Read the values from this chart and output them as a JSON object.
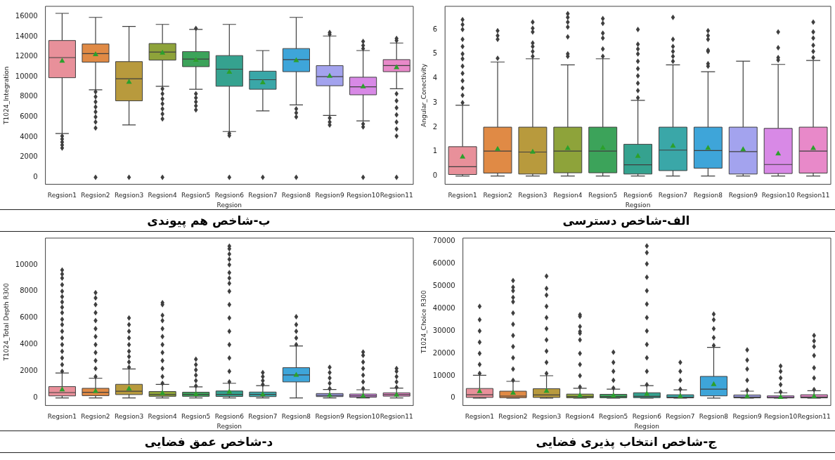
{
  "chart_data": [
    {
      "type": "box",
      "title": "ب-شاخص هم پیوندی",
      "xlabel": "Regsion",
      "ylabel": "T1024_Integration",
      "categories": [
        "Regsion1",
        "Regsion2",
        "Regsion3",
        "Regsion4",
        "Regsion5",
        "Regsion6",
        "Regsion7",
        "Regsion8",
        "Regsion9",
        "Regsion10",
        "Regsion11"
      ],
      "colors": [
        "#e8909a",
        "#e08a45",
        "#b89a3d",
        "#8ea33a",
        "#3ca35a",
        "#35a28f",
        "#3aa7a8",
        "#3ea5d9",
        "#a3a3ee",
        "#d889e6",
        "#e889c9"
      ],
      "ylim": [
        -700,
        17000
      ],
      "yticks": [
        0,
        2000,
        4000,
        6000,
        8000,
        10000,
        12000,
        14000,
        16000
      ],
      "boxes": [
        {
          "low": 4350,
          "q1": 9900,
          "median": 11900,
          "q3": 13600,
          "high": 16300,
          "mean": 11600,
          "outliers": [
            2900,
            3200,
            3500,
            3800,
            4100
          ]
        },
        {
          "low": 8700,
          "q1": 11450,
          "median": 12300,
          "q3": 13250,
          "high": 15900,
          "mean": 12250,
          "outliers": [
            0,
            4900,
            5500,
            6000,
            6500,
            7000,
            7500,
            8000,
            8500
          ]
        },
        {
          "low": 5200,
          "q1": 7600,
          "median": 9800,
          "q3": 11500,
          "high": 15000,
          "mean": 9500,
          "outliers": [
            0
          ]
        },
        {
          "low": 9050,
          "q1": 11650,
          "median": 12450,
          "q3": 13300,
          "high": 15200,
          "mean": 12400,
          "outliers": [
            0,
            5800,
            6300,
            6800,
            7300,
            7800,
            8300,
            8800
          ]
        },
        {
          "low": 8750,
          "q1": 11000,
          "median": 11750,
          "q3": 12500,
          "high": 14700,
          "mean": 11700,
          "outliers": [
            6700,
            7100,
            7500,
            7900,
            8300,
            14800
          ]
        },
        {
          "low": 4550,
          "q1": 9050,
          "median": 10750,
          "q3": 12100,
          "high": 15200,
          "mean": 10500,
          "outliers": [
            0,
            4150,
            4350
          ]
        },
        {
          "low": 6600,
          "q1": 8750,
          "median": 9700,
          "q3": 10550,
          "high": 12600,
          "mean": 9450,
          "outliers": [
            0
          ]
        },
        {
          "low": 7200,
          "q1": 10500,
          "median": 11700,
          "q3": 12800,
          "high": 15900,
          "mean": 11650,
          "outliers": [
            0,
            6000,
            6400,
            6800
          ]
        },
        {
          "low": 6150,
          "q1": 9100,
          "median": 10000,
          "q3": 11100,
          "high": 14050,
          "mean": 10100,
          "outliers": [
            5200,
            5500,
            5900,
            14200,
            14400
          ]
        },
        {
          "low": 5600,
          "q1": 8200,
          "median": 9000,
          "q3": 9950,
          "high": 12600,
          "mean": 9050,
          "outliers": [
            0,
            5000,
            5300,
            12800,
            13100,
            13500
          ]
        },
        {
          "low": 8800,
          "q1": 10500,
          "median": 11100,
          "q3": 11700,
          "high": 13350,
          "mean": 10950,
          "outliers": [
            0,
            4100,
            4800,
            5500,
            6200,
            6900,
            7600,
            8300,
            13600,
            13800
          ]
        }
      ]
    },
    {
      "type": "box",
      "title": "الف-شاخص دسترسی",
      "xlabel": "Regsion",
      "ylabel": "Angular_Conectivity",
      "categories": [
        "Regsion1",
        "Regsion2",
        "Regsion3",
        "Regsion4",
        "Regsion5",
        "Regsion6",
        "Regsion7",
        "Regsion8",
        "Regsion9",
        "Regsion10",
        "Regsion11"
      ],
      "colors": [
        "#e8909a",
        "#e08a45",
        "#b89a3d",
        "#8ea33a",
        "#3ca35a",
        "#35a28f",
        "#3aa7a8",
        "#3ea5d9",
        "#a3a3ee",
        "#d889e6",
        "#e889c9"
      ],
      "ylim": [
        -0.34,
        6.95
      ],
      "yticks": [
        0,
        1,
        2,
        3,
        4,
        5,
        6
      ],
      "boxes": [
        {
          "low": 0,
          "q1": 0.06,
          "median": 0.38,
          "q3": 1.2,
          "high": 2.9,
          "mean": 0.8,
          "outliers": [
            3.0,
            3.3,
            3.6,
            3.9,
            4.2,
            4.5,
            4.8,
            5.0,
            5.3,
            5.6,
            6.0,
            6.2,
            6.4
          ]
        },
        {
          "low": 0,
          "q1": 0.12,
          "median": 1.02,
          "q3": 2.0,
          "high": 4.67,
          "mean": 1.12,
          "outliers": [
            4.82,
            5.6,
            5.75,
            5.95
          ]
        },
        {
          "low": 0,
          "q1": 0.08,
          "median": 0.98,
          "q3": 2.0,
          "high": 4.8,
          "mean": 1.0,
          "outliers": [
            4.9,
            5.1,
            5.3,
            5.45,
            5.9,
            6.05,
            6.3
          ]
        },
        {
          "low": 0,
          "q1": 0.13,
          "median": 1.02,
          "q3": 2.0,
          "high": 4.55,
          "mean": 1.15,
          "outliers": [
            4.9,
            5.0,
            5.7,
            6.1,
            6.3,
            6.5,
            6.65
          ]
        },
        {
          "low": 0,
          "q1": 0.13,
          "median": 1.02,
          "q3": 2.0,
          "high": 4.8,
          "mean": 1.17,
          "outliers": [
            4.9,
            5.2,
            5.65,
            5.85,
            6.25,
            6.45
          ]
        },
        {
          "low": 0,
          "q1": 0.08,
          "median": 0.46,
          "q3": 1.3,
          "high": 3.1,
          "mean": 0.83,
          "outliers": [
            3.2,
            3.5,
            3.8,
            4.1,
            4.4,
            4.7,
            5.0,
            5.2,
            5.4,
            6.0
          ]
        },
        {
          "low": 0,
          "q1": 0.22,
          "median": 1.06,
          "q3": 2.0,
          "high": 4.55,
          "mean": 1.25,
          "outliers": [
            4.7,
            4.9,
            5.1,
            5.3,
            5.6,
            6.5
          ]
        },
        {
          "low": 0,
          "q1": 0.32,
          "median": 1.04,
          "q3": 2.0,
          "high": 4.27,
          "mean": 1.16,
          "outliers": [
            4.5,
            4.6,
            5.1,
            5.15,
            5.6,
            5.75,
            5.95
          ]
        },
        {
          "low": 0,
          "q1": 0.08,
          "median": 1.0,
          "q3": 2.0,
          "high": 4.7,
          "mean": 1.1
        },
        {
          "low": 0,
          "q1": 0.1,
          "median": 0.47,
          "q3": 1.95,
          "high": 4.57,
          "mean": 0.93,
          "outliers": [
            4.75,
            4.85,
            5.25,
            5.9
          ]
        },
        {
          "low": 0,
          "q1": 0.12,
          "median": 1.02,
          "q3": 2.0,
          "high": 4.73,
          "mean": 1.15,
          "outliers": [
            4.85,
            5.1,
            5.35,
            5.65,
            5.9,
            6.3
          ]
        }
      ]
    },
    {
      "type": "box",
      "title": "د-شاخص عمق فضایی",
      "xlabel": "Regsion",
      "ylabel": "T1024_Total Depth R300",
      "categories": [
        "Regsion1",
        "Regsion2",
        "Regsion3",
        "Regsion4",
        "Regsion5",
        "Regsion6",
        "Regsion7",
        "Regsion8",
        "Regsion9",
        "Regsion10",
        "Regsion11"
      ],
      "colors": [
        "#e8909a",
        "#e08a45",
        "#b89a3d",
        "#8ea33a",
        "#3ca35a",
        "#35a28f",
        "#3aa7a8",
        "#3ea5d9",
        "#a3a3ee",
        "#d889e6",
        "#e889c9"
      ],
      "ylim": [
        -570,
        12000
      ],
      "yticks": [
        0,
        2000,
        4000,
        6000,
        8000,
        10000
      ],
      "boxes": [
        {
          "low": 0,
          "q1": 150,
          "median": 400,
          "q3": 850,
          "high": 1870,
          "mean": 650,
          "outliers": [
            2000,
            2500,
            3000,
            3500,
            4000,
            4500,
            5000,
            5500,
            5900,
            6400,
            6800,
            7200,
            7600,
            8000,
            8500,
            9000,
            9300,
            9600
          ]
        },
        {
          "low": 0,
          "q1": 170,
          "median": 420,
          "q3": 720,
          "high": 1480,
          "mean": 530,
          "outliers": [
            1600,
            2200,
            2800,
            3400,
            4000,
            4600,
            5200,
            5800,
            6400,
            7000,
            7500,
            7900
          ]
        },
        {
          "low": 0,
          "q1": 250,
          "median": 500,
          "q3": 1020,
          "high": 2170,
          "mean": 720,
          "outliers": [
            2300,
            2700,
            3100,
            3500,
            4000,
            4500,
            5000,
            5500,
            6000
          ]
        },
        {
          "low": 0,
          "q1": 120,
          "median": 250,
          "q3": 480,
          "high": 1010,
          "mean": 380,
          "outliers": [
            1100,
            1600,
            2200,
            2800,
            3400,
            4000,
            4600,
            5200,
            5800,
            6200,
            7000,
            7150
          ]
        },
        {
          "low": 0,
          "q1": 120,
          "median": 260,
          "q3": 430,
          "high": 830,
          "mean": 300,
          "outliers": [
            900,
            1300,
            1700,
            2100,
            2500,
            2900
          ]
        },
        {
          "low": 0,
          "q1": 110,
          "median": 260,
          "q3": 520,
          "high": 1100,
          "mean": 480,
          "outliers": [
            1200,
            2000,
            3000,
            4000,
            5000,
            6000,
            7000,
            8000,
            8600,
            9000,
            9400,
            10000,
            10400,
            10800,
            11200,
            11400
          ]
        },
        {
          "low": 0,
          "q1": 100,
          "median": 260,
          "q3": 440,
          "high": 920,
          "mean": 280,
          "outliers": [
            1000,
            1300,
            1600,
            1900
          ]
        },
        {
          "low": 0,
          "q1": 1200,
          "median": 1720,
          "q3": 2270,
          "high": 3900,
          "mean": 1750,
          "outliers": [
            4000,
            4500,
            5000,
            5500,
            6100
          ]
        },
        {
          "low": 0,
          "q1": 100,
          "median": 200,
          "q3": 330,
          "high": 630,
          "mean": 230,
          "outliers": [
            700,
            1100,
            1500,
            1900,
            2300
          ]
        },
        {
          "low": 0,
          "q1": 50,
          "median": 160,
          "q3": 290,
          "high": 610,
          "mean": 180,
          "outliers": [
            700,
            1200,
            1700,
            2200,
            2700,
            3200,
            3450
          ]
        },
        {
          "low": 0,
          "q1": 130,
          "median": 250,
          "q3": 380,
          "high": 740,
          "mean": 260,
          "outliers": [
            800,
            1200,
            1600,
            2000,
            2200
          ]
        }
      ]
    },
    {
      "type": "box",
      "title": "ج-شاخص انتخاب پذیری فضایی",
      "xlabel": "Regsion",
      "ylabel": "T1024_Choice R300",
      "categories": [
        "Regsion1",
        "Regsion2",
        "Regsion3",
        "Regsion4",
        "Regsion5",
        "Regsion6",
        "Regsion7",
        "Regsion8",
        "Regsion9",
        "Regsion10",
        "Regsion11"
      ],
      "colors": [
        "#e8909a",
        "#e08a45",
        "#b89a3d",
        "#8ea33a",
        "#3ca35a",
        "#35a28f",
        "#3aa7a8",
        "#3ea5d9",
        "#a3a3ee",
        "#d889e6",
        "#e889c9"
      ],
      "ylim": [
        -3300,
        71500
      ],
      "yticks": [
        0,
        10000,
        20000,
        30000,
        40000,
        50000,
        60000,
        70000
      ],
      "boxes": [
        {
          "low": 0,
          "q1": 300,
          "median": 1500,
          "q3": 4300,
          "high": 10200,
          "mean": 3200,
          "outliers": [
            11000,
            15000,
            20000,
            25000,
            30000,
            35000,
            41000
          ]
        },
        {
          "low": 0,
          "q1": 200,
          "median": 900,
          "q3": 3100,
          "high": 7500,
          "mean": 2500,
          "outliers": [
            8000,
            13000,
            18000,
            23000,
            28000,
            33000,
            38000,
            43000,
            45000,
            48000,
            49500,
            52500
          ]
        },
        {
          "low": 0,
          "q1": 300,
          "median": 1400,
          "q3": 4200,
          "high": 10000,
          "mean": 3300,
          "outliers": [
            11000,
            16000,
            21000,
            26000,
            31000,
            36000,
            41000,
            46000,
            49000,
            54500
          ]
        },
        {
          "low": 0,
          "q1": 150,
          "median": 700,
          "q3": 1800,
          "high": 4400,
          "mean": 1300,
          "outliers": [
            5000,
            10000,
            15000,
            20000,
            26000,
            29000,
            29800,
            32000,
            36500,
            37200
          ]
        },
        {
          "low": 0,
          "q1": 150,
          "median": 700,
          "q3": 1700,
          "high": 4000,
          "mean": 1200,
          "outliers": [
            4500,
            8000,
            12000,
            16000,
            20500
          ]
        },
        {
          "low": 0,
          "q1": 200,
          "median": 800,
          "q3": 2400,
          "high": 5600,
          "mean": 2000,
          "outliers": [
            6000,
            12000,
            18000,
            24000,
            30000,
            36000,
            42000,
            48000,
            54000,
            60000,
            65000,
            68000
          ]
        },
        {
          "low": 0,
          "q1": 100,
          "median": 400,
          "q3": 1500,
          "high": 3700,
          "mean": 1000,
          "outliers": [
            4000,
            8000,
            12000,
            16000
          ]
        },
        {
          "low": 0,
          "q1": 1000,
          "median": 4000,
          "q3": 9700,
          "high": 22700,
          "mean": 6300,
          "outliers": [
            23500,
            27000,
            31000,
            35000,
            37500
          ]
        },
        {
          "low": 0,
          "q1": 100,
          "median": 500,
          "q3": 1400,
          "high": 3100,
          "mean": 1000,
          "outliers": [
            3500,
            8000,
            13000,
            17000,
            21500
          ]
        },
        {
          "low": 0,
          "q1": 80,
          "median": 300,
          "q3": 1000,
          "high": 2400,
          "mean": 600,
          "outliers": [
            2800,
            6000,
            9000,
            12000,
            14300
          ]
        },
        {
          "low": 0,
          "q1": 100,
          "median": 500,
          "q3": 1500,
          "high": 3300,
          "mean": 1000,
          "outliers": [
            3800,
            9000,
            13500,
            19000,
            23000,
            25500,
            28000
          ]
        }
      ]
    }
  ]
}
